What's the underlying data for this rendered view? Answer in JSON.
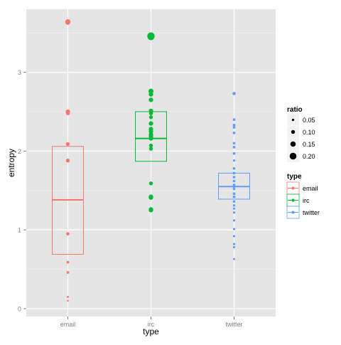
{
  "chart_data": {
    "type": "boxplot",
    "xlabel": "type",
    "ylabel": "entropy",
    "categories": [
      "email",
      "irc",
      "twitter"
    ],
    "y_ticks": [
      0,
      1,
      2,
      3
    ],
    "ylim": [
      -0.1,
      3.8
    ],
    "grid": true,
    "legend_position": "right",
    "colors": {
      "email": "#F8766D",
      "irc": "#00BA38",
      "twitter": "#619CFF"
    },
    "boxes": [
      {
        "category": "email",
        "q1": 0.69,
        "median": 1.38,
        "q3": 2.06
      },
      {
        "category": "irc",
        "q1": 1.87,
        "median": 2.16,
        "q3": 2.5
      },
      {
        "category": "twitter",
        "q1": 1.39,
        "median": 1.55,
        "q3": 1.72
      }
    ],
    "points": {
      "email": [
        {
          "y": 3.64,
          "ratio": 0.15
        },
        {
          "y": 3.63,
          "ratio": 0.12
        },
        {
          "y": 2.5,
          "ratio": 0.12
        },
        {
          "y": 2.48,
          "ratio": 0.1
        },
        {
          "y": 2.09,
          "ratio": 0.1
        },
        {
          "y": 1.88,
          "ratio": 0.1
        },
        {
          "y": 0.95,
          "ratio": 0.08
        },
        {
          "y": 0.59,
          "ratio": 0.06
        },
        {
          "y": 0.46,
          "ratio": 0.06
        },
        {
          "y": 0.15,
          "ratio": 0.04
        },
        {
          "y": 0.1,
          "ratio": 0.03
        }
      ],
      "irc": [
        {
          "y": 3.46,
          "ratio": 0.22
        },
        {
          "y": 3.45,
          "ratio": 0.2
        },
        {
          "y": 2.76,
          "ratio": 0.14
        },
        {
          "y": 2.72,
          "ratio": 0.12
        },
        {
          "y": 2.65,
          "ratio": 0.12
        },
        {
          "y": 2.51,
          "ratio": 0.12
        },
        {
          "y": 2.48,
          "ratio": 0.1
        },
        {
          "y": 2.43,
          "ratio": 0.1
        },
        {
          "y": 2.35,
          "ratio": 0.12
        },
        {
          "y": 2.28,
          "ratio": 0.12
        },
        {
          "y": 2.25,
          "ratio": 0.12
        },
        {
          "y": 2.21,
          "ratio": 0.12
        },
        {
          "y": 2.19,
          "ratio": 0.12
        },
        {
          "y": 2.16,
          "ratio": 0.12
        },
        {
          "y": 2.07,
          "ratio": 0.1
        },
        {
          "y": 2.03,
          "ratio": 0.1
        },
        {
          "y": 1.59,
          "ratio": 0.1
        },
        {
          "y": 1.42,
          "ratio": 0.12
        },
        {
          "y": 1.41,
          "ratio": 0.12
        },
        {
          "y": 1.26,
          "ratio": 0.12
        },
        {
          "y": 1.25,
          "ratio": 0.12
        }
      ],
      "twitter": [
        {
          "y": 2.73,
          "ratio": 0.08
        },
        {
          "y": 2.4,
          "ratio": 0.06
        },
        {
          "y": 2.33,
          "ratio": 0.06
        },
        {
          "y": 2.3,
          "ratio": 0.06
        },
        {
          "y": 2.23,
          "ratio": 0.06
        },
        {
          "y": 2.1,
          "ratio": 0.06
        },
        {
          "y": 2.05,
          "ratio": 0.06
        },
        {
          "y": 1.97,
          "ratio": 0.06
        },
        {
          "y": 1.88,
          "ratio": 0.05
        },
        {
          "y": 1.78,
          "ratio": 0.06
        },
        {
          "y": 1.72,
          "ratio": 0.06
        },
        {
          "y": 1.67,
          "ratio": 0.06
        },
        {
          "y": 1.62,
          "ratio": 0.06
        },
        {
          "y": 1.57,
          "ratio": 0.06
        },
        {
          "y": 1.55,
          "ratio": 0.06
        },
        {
          "y": 1.52,
          "ratio": 0.06
        },
        {
          "y": 1.46,
          "ratio": 0.06
        },
        {
          "y": 1.42,
          "ratio": 0.06
        },
        {
          "y": 1.36,
          "ratio": 0.06
        },
        {
          "y": 1.31,
          "ratio": 0.05
        },
        {
          "y": 1.27,
          "ratio": 0.05
        },
        {
          "y": 1.22,
          "ratio": 0.05
        },
        {
          "y": 1.12,
          "ratio": 0.05
        },
        {
          "y": 1.01,
          "ratio": 0.05
        },
        {
          "y": 0.92,
          "ratio": 0.05
        },
        {
          "y": 0.82,
          "ratio": 0.05
        },
        {
          "y": 0.78,
          "ratio": 0.05
        },
        {
          "y": 0.63,
          "ratio": 0.04
        }
      ]
    },
    "legend": {
      "ratio": {
        "title": "ratio",
        "values": [
          0.05,
          0.1,
          0.15,
          0.2
        ],
        "labels": [
          "0.05",
          "0.10",
          "0.15",
          "0.20"
        ]
      },
      "type": {
        "title": "type",
        "labels": [
          "email",
          "irc",
          "twitter"
        ]
      }
    }
  }
}
